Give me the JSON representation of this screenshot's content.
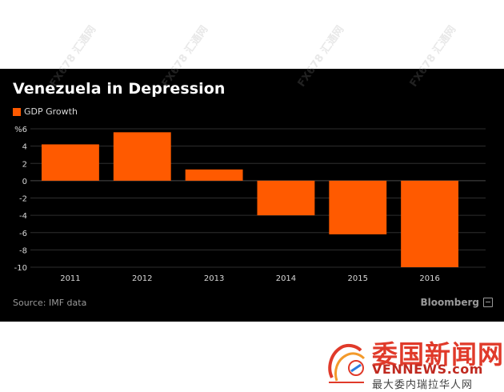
{
  "chart_data": {
    "type": "bar",
    "title": "Venezuela in Depression",
    "categories": [
      "2011",
      "2012",
      "2013",
      "2014",
      "2015",
      "2016"
    ],
    "series": [
      {
        "name": "GDP Growth",
        "values": [
          4.2,
          5.6,
          1.3,
          -4.0,
          -6.2,
          -10.0
        ],
        "color": "#ff5a00"
      }
    ],
    "y_ticks": [
      "%6",
      "4",
      "2",
      "0",
      "-2",
      "-4",
      "-6",
      "-8",
      "-10"
    ],
    "y_tick_values": [
      6,
      4,
      2,
      0,
      -2,
      -4,
      -6,
      -8,
      -10
    ],
    "ylim": [
      -10,
      6
    ],
    "xlabel": "",
    "ylabel": "",
    "grid": true,
    "legend_position": "top-left",
    "source": "Source: IMF data",
    "background": "#000000",
    "grid_color": "#2e2e2e"
  },
  "branding": {
    "bloomberg": "Bloomberg",
    "watermark": "FX678 汇通网"
  },
  "footer_logo": {
    "main": "委国新闻网",
    "site": "VENNEWS.com",
    "tagline": "最大委内瑞拉华人网"
  }
}
